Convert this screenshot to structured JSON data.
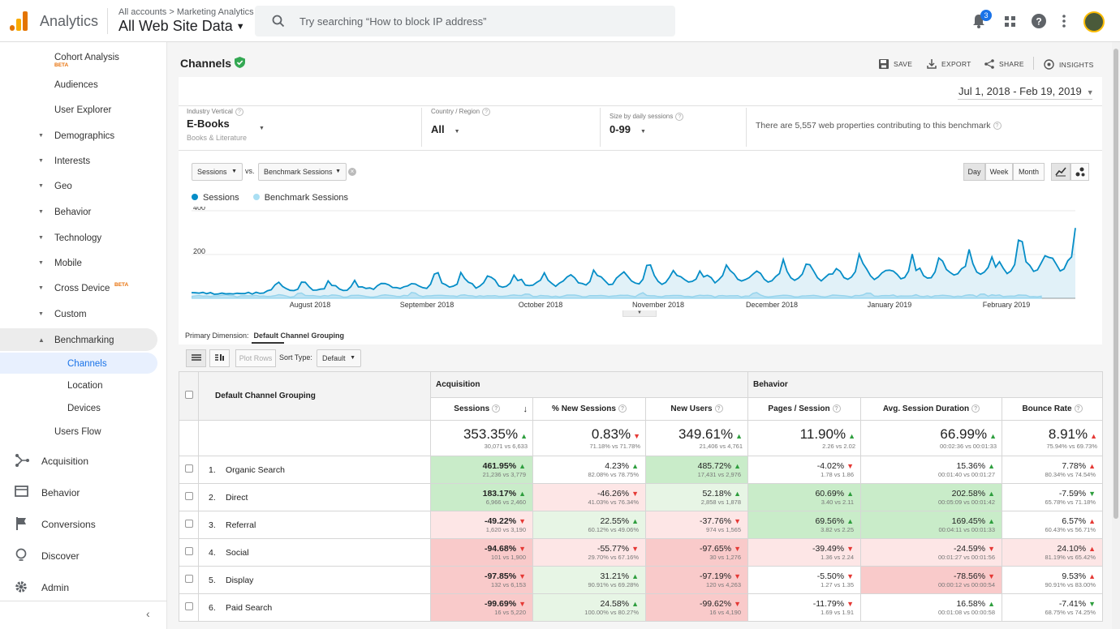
{
  "header": {
    "app_name": "Analytics",
    "breadcrumb": "All accounts > Marketing Analytics",
    "property": "All Web Site Data",
    "search_placeholder": "Try searching “How to block IP address”",
    "notification_count": "3"
  },
  "sidebar": {
    "items": [
      {
        "label": "Cohort Analysis",
        "badge": "BETA"
      },
      {
        "label": "Audiences"
      },
      {
        "label": "User Explorer"
      },
      {
        "label": "Demographics"
      },
      {
        "label": "Interests"
      },
      {
        "label": "Geo"
      },
      {
        "label": "Behavior"
      },
      {
        "label": "Technology"
      },
      {
        "label": "Mobile"
      },
      {
        "label": "Cross Device",
        "badge": "BETA"
      },
      {
        "label": "Custom"
      },
      {
        "label": "Benchmarking"
      },
      {
        "label": "Channels"
      },
      {
        "label": "Location"
      },
      {
        "label": "Devices"
      },
      {
        "label": "Users Flow"
      }
    ],
    "bottom": [
      "Acquisition",
      "Behavior",
      "Conversions",
      "Discover",
      "Admin"
    ]
  },
  "page": {
    "title": "Channels",
    "actions": [
      "SAVE",
      "EXPORT",
      "SHARE",
      "INSIGHTS"
    ],
    "date_range": "Jul 1, 2018 - Feb 19, 2019"
  },
  "filters": {
    "industry_label": "Industry Vertical",
    "industry_value": "E-Books",
    "industry_sub": "Books & Literature",
    "country_label": "Country / Region",
    "country_value": "All",
    "size_label": "Size by daily sessions",
    "size_value": "0-99",
    "note": "There are 5,557 web properties contributing to this benchmark"
  },
  "controls": {
    "metric1": "Sessions",
    "vs": "vs.",
    "metric2": "Benchmark Sessions",
    "day": "Day",
    "week": "Week",
    "month": "Month"
  },
  "chart_data": {
    "type": "area",
    "series": [
      {
        "name": "Sessions",
        "color": "#058dc7"
      },
      {
        "name": "Benchmark Sessions",
        "color": "#aadff3"
      }
    ],
    "x_tick_labels": [
      "August 2018",
      "September 2018",
      "October 2018",
      "November 2018",
      "December 2018",
      "January 2019",
      "February 2019"
    ],
    "y_tick_labels": [
      "400",
      "200"
    ],
    "ylim": [
      0,
      400
    ]
  },
  "table_controls": {
    "primary_dimension_label": "Primary Dimension:",
    "primary_dimension_value": "Default Channel Grouping",
    "plot_rows": "Plot Rows",
    "sort_type_label": "Sort Type:",
    "sort_type_value": "Default"
  },
  "table": {
    "dimension_header": "Default Channel Grouping",
    "group_acquisition": "Acquisition",
    "group_behavior": "Behavior",
    "columns": [
      "Sessions",
      "% New Sessions",
      "New Users",
      "Pages / Session",
      "Avg. Session Duration",
      "Bounce Rate"
    ],
    "totals": [
      {
        "v": "353.35%",
        "s": "30,071 vs 6,633",
        "d": "up"
      },
      {
        "v": "0.83%",
        "s": "71.18% vs 71.78%",
        "d": "down"
      },
      {
        "v": "349.61%",
        "s": "21,406 vs 4,761",
        "d": "up"
      },
      {
        "v": "11.90%",
        "s": "2.26 vs 2.02",
        "d": "up"
      },
      {
        "v": "66.99%",
        "s": "00:02:36 vs 00:01:33",
        "d": "up"
      },
      {
        "v": "8.91%",
        "s": "75.94% vs 69.73%",
        "d": "up-red"
      }
    ],
    "rows": [
      {
        "idx": "1.",
        "name": "Organic Search",
        "cells": [
          {
            "v": "461.95%",
            "s": "21,236 vs 3,779",
            "d": "up",
            "bg": "g1",
            "bold": true
          },
          {
            "v": "4.23%",
            "s": "82.08% vs 78.75%",
            "d": "up",
            "bg": "w"
          },
          {
            "v": "485.72%",
            "s": "17,431 vs 2,976",
            "d": "up",
            "bg": "g1"
          },
          {
            "v": "-4.02%",
            "s": "1.78 vs 1.86",
            "d": "down",
            "bg": "w"
          },
          {
            "v": "15.36%",
            "s": "00:01:40 vs 00:01:27",
            "d": "up",
            "bg": "w"
          },
          {
            "v": "7.78%",
            "s": "80.34% vs 74.54%",
            "d": "up-red",
            "bg": "w"
          }
        ]
      },
      {
        "idx": "2.",
        "name": "Direct",
        "cells": [
          {
            "v": "183.17%",
            "s": "6,966 vs 2,460",
            "d": "up",
            "bg": "g1",
            "bold": true
          },
          {
            "v": "-46.26%",
            "s": "41.03% vs 76.34%",
            "d": "down",
            "bg": "r2"
          },
          {
            "v": "52.18%",
            "s": "2,858 vs 1,878",
            "d": "up",
            "bg": "g2"
          },
          {
            "v": "60.69%",
            "s": "3.40 vs 2.11",
            "d": "up",
            "bg": "g1"
          },
          {
            "v": "202.58%",
            "s": "00:05:09 vs 00:01:42",
            "d": "up",
            "bg": "g1"
          },
          {
            "v": "-7.59%",
            "s": "65.78% vs 71.18%",
            "d": "down-green",
            "bg": "w"
          }
        ]
      },
      {
        "idx": "3.",
        "name": "Referral",
        "cells": [
          {
            "v": "-49.22%",
            "s": "1,620 vs 3,190",
            "d": "down",
            "bg": "r2",
            "bold": true
          },
          {
            "v": "22.55%",
            "s": "60.12% vs 49.06%",
            "d": "up",
            "bg": "g2"
          },
          {
            "v": "-37.76%",
            "s": "974 vs 1,565",
            "d": "down",
            "bg": "r2"
          },
          {
            "v": "69.56%",
            "s": "3.82 vs 2.25",
            "d": "up",
            "bg": "g1"
          },
          {
            "v": "169.45%",
            "s": "00:04:11 vs 00:01:33",
            "d": "up",
            "bg": "g1"
          },
          {
            "v": "6.57%",
            "s": "60.43% vs 56.71%",
            "d": "up-red",
            "bg": "w"
          }
        ]
      },
      {
        "idx": "4.",
        "name": "Social",
        "cells": [
          {
            "v": "-94.68%",
            "s": "101 vs 1,900",
            "d": "down",
            "bg": "r1",
            "bold": true
          },
          {
            "v": "-55.77%",
            "s": "29.70% vs 67.16%",
            "d": "down",
            "bg": "r2"
          },
          {
            "v": "-97.65%",
            "s": "30 vs 1,276",
            "d": "down",
            "bg": "r1"
          },
          {
            "v": "-39.49%",
            "s": "1.36 vs 2.24",
            "d": "down",
            "bg": "r2"
          },
          {
            "v": "-24.59%",
            "s": "00:01:27 vs 00:01:56",
            "d": "down",
            "bg": "r2"
          },
          {
            "v": "24.10%",
            "s": "81.19% vs 65.42%",
            "d": "up-red",
            "bg": "r2"
          }
        ]
      },
      {
        "idx": "5.",
        "name": "Display",
        "cells": [
          {
            "v": "-97.85%",
            "s": "132 vs 6,153",
            "d": "down",
            "bg": "r1",
            "bold": true
          },
          {
            "v": "31.21%",
            "s": "90.91% vs 69.28%",
            "d": "up",
            "bg": "g2"
          },
          {
            "v": "-97.19%",
            "s": "120 vs 4,263",
            "d": "down",
            "bg": "r1"
          },
          {
            "v": "-5.50%",
            "s": "1.27 vs 1.35",
            "d": "down",
            "bg": "w"
          },
          {
            "v": "-78.56%",
            "s": "00:00:12 vs 00:00:54",
            "d": "down",
            "bg": "r1"
          },
          {
            "v": "9.53%",
            "s": "90.91% vs 83.00%",
            "d": "up-red",
            "bg": "w"
          }
        ]
      },
      {
        "idx": "6.",
        "name": "Paid Search",
        "cells": [
          {
            "v": "-99.69%",
            "s": "16 vs 5,220",
            "d": "down",
            "bg": "r1",
            "bold": true
          },
          {
            "v": "24.58%",
            "s": "100.00% vs 80.27%",
            "d": "up",
            "bg": "g2"
          },
          {
            "v": "-99.62%",
            "s": "16 vs 4,190",
            "d": "down",
            "bg": "r1"
          },
          {
            "v": "-11.79%",
            "s": "1.69 vs 1.91",
            "d": "down",
            "bg": "w"
          },
          {
            "v": "16.58%",
            "s": "00:01:08 vs 00:00:58",
            "d": "up",
            "bg": "w"
          },
          {
            "v": "-7.41%",
            "s": "68.75% vs 74.25%",
            "d": "down-green",
            "bg": "w"
          }
        ]
      }
    ]
  }
}
